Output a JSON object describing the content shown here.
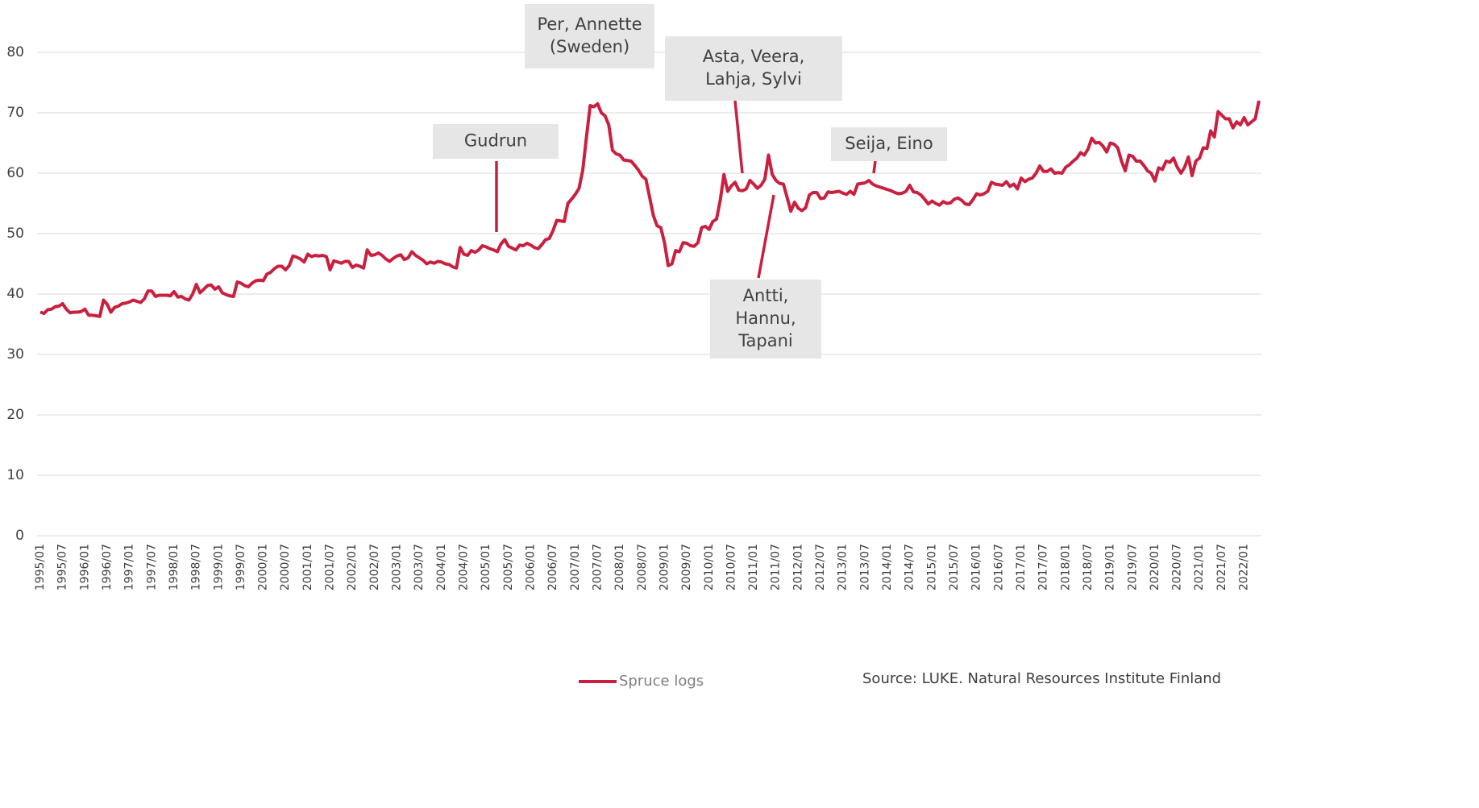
{
  "chart_data": {
    "type": "line",
    "categories": [
      "1995/01",
      null,
      null,
      null,
      null,
      null,
      "1995/07",
      null,
      null,
      null,
      null,
      null,
      "1996/01",
      null,
      null,
      null,
      null,
      null,
      "1996/07",
      null,
      null,
      null,
      null,
      null,
      "1997/01",
      null,
      null,
      null,
      null,
      null,
      "1997/07",
      null,
      null,
      null,
      null,
      null,
      "1998/01",
      null,
      null,
      null,
      null,
      null,
      "1998/07",
      null,
      null,
      null,
      null,
      null,
      "1999/01",
      null,
      null,
      null,
      null,
      null,
      "1999/07",
      null,
      null,
      null,
      null,
      null,
      "2000/01",
      null,
      null,
      null,
      null,
      null,
      "2000/07",
      null,
      null,
      null,
      null,
      null,
      "2001/01",
      null,
      null,
      null,
      null,
      null,
      "2001/07",
      null,
      null,
      null,
      null,
      null,
      "2002/01",
      null,
      null,
      null,
      null,
      null,
      "2002/07",
      null,
      null,
      null,
      null,
      null,
      "2003/01",
      null,
      null,
      null,
      null,
      null,
      "2003/07",
      null,
      null,
      null,
      null,
      null,
      "2004/01",
      null,
      null,
      null,
      null,
      null,
      "2004/07",
      null,
      null,
      null,
      null,
      null,
      "2005/01",
      null,
      null,
      null,
      null,
      null,
      "2005/07",
      null,
      null,
      null,
      null,
      null,
      "2006/01",
      null,
      null,
      null,
      null,
      null,
      "2006/07",
      null,
      null,
      null,
      null,
      null,
      "2007/01",
      null,
      null,
      null,
      null,
      null,
      "2007/07",
      null,
      null,
      null,
      null,
      null,
      "2008/01",
      null,
      null,
      null,
      null,
      null,
      "2008/07",
      null,
      null,
      null,
      null,
      null,
      "2009/01",
      null,
      null,
      null,
      null,
      null,
      "2009/07",
      null,
      null,
      null,
      null,
      null,
      "2010/01",
      null,
      null,
      null,
      null,
      null,
      "2010/07",
      null,
      null,
      null,
      null,
      null,
      "2011/01",
      null,
      null,
      null,
      null,
      null,
      "2011/07",
      null,
      null,
      null,
      null,
      null,
      "2012/01",
      null,
      null,
      null,
      null,
      null,
      "2012/07",
      null,
      null,
      null,
      null,
      null,
      "2013/01",
      null,
      null,
      null,
      null,
      null,
      "2013/07",
      null,
      null,
      null,
      null,
      null,
      "2014/01",
      null,
      null,
      null,
      null,
      null,
      "2014/07",
      null,
      null,
      null,
      null,
      null,
      "2015/01",
      null,
      null,
      null,
      null,
      null,
      "2015/07",
      null,
      null,
      null,
      null,
      null,
      "2016/01",
      null,
      null,
      null,
      null,
      null,
      "2016/07",
      null,
      null,
      null,
      null,
      null,
      "2017/01",
      null,
      null,
      null,
      null,
      null,
      "2017/07",
      null,
      null,
      null,
      null,
      null,
      "2018/01",
      null,
      null,
      null,
      null,
      null,
      "2018/07",
      null,
      null,
      null,
      null,
      null,
      "2019/01",
      null,
      null,
      null,
      null,
      null,
      "2019/07",
      null,
      null,
      null,
      null,
      null,
      "2020/01",
      null,
      null,
      null,
      null,
      null,
      "2020/07",
      null,
      null,
      null,
      null,
      null,
      "2021/01",
      null,
      null,
      null,
      null,
      null,
      "2021/07",
      null,
      null,
      null,
      null,
      null,
      "2022/01",
      null,
      null,
      null,
      null
    ],
    "series": [
      {
        "name": "Spruce logs",
        "color": "#c9203f",
        "values": [
          37,
          36.8,
          37.4,
          37.5,
          37.9,
          38,
          38.4,
          37.5,
          36.9,
          37,
          37,
          37.1,
          37.5,
          36.5,
          36.5,
          36.4,
          36.3,
          39,
          38.3,
          37,
          37.8,
          38,
          38.4,
          38.5,
          38.7,
          39,
          38.8,
          38.6,
          39.2,
          40.5,
          40.5,
          39.6,
          39.8,
          39.8,
          39.8,
          39.7,
          40.4,
          39.5,
          39.6,
          39.2,
          39,
          40,
          41.6,
          40.2,
          40.8,
          41.4,
          41.5,
          40.8,
          41.2,
          40.2,
          39.9,
          39.7,
          39.6,
          42,
          41.8,
          41.4,
          41.2,
          41.8,
          42.2,
          42.3,
          42.2,
          43.3,
          43.6,
          44.2,
          44.6,
          44.6,
          44,
          44.7,
          46.3,
          46.1,
          45.8,
          45.3,
          46.6,
          46.2,
          46.4,
          46.3,
          46.4,
          46.2,
          44,
          45.5,
          45.3,
          45.1,
          45.4,
          45.4,
          44.4,
          44.8,
          44.6,
          44.3,
          47.3,
          46.4,
          46.5,
          46.8,
          46.4,
          45.8,
          45.4,
          45.9,
          46.3,
          46.5,
          45.7,
          46,
          47,
          46.4,
          46,
          45.6,
          45,
          45.3,
          45.1,
          45.4,
          45.3,
          45,
          44.9,
          44.5,
          44.3,
          47.7,
          46.6,
          46.4,
          47.2,
          46.9,
          47.3,
          48,
          47.8,
          47.5,
          47.3,
          47,
          48.3,
          49,
          47.9,
          47.6,
          47.3,
          48.1,
          48,
          48.4,
          48.1,
          47.7,
          47.5,
          48.2,
          49,
          49.2,
          50.5,
          52.2,
          52.1,
          52,
          55,
          55.7,
          56.5,
          57.5,
          60.5,
          66,
          71.2,
          71,
          71.5,
          70,
          69.5,
          68,
          63.8,
          63.2,
          63,
          62.2,
          62.1,
          62,
          61.3,
          60.5,
          59.5,
          59,
          56,
          53,
          51.3,
          51,
          48.5,
          44.7,
          45,
          47.2,
          47,
          48.5,
          48.4,
          48,
          47.9,
          48.5,
          51,
          51.2,
          50.7,
          52,
          52.4,
          55.5,
          59.8,
          57,
          57.9,
          58.5,
          57.2,
          57.1,
          57.4,
          58.8,
          58.2,
          57.5,
          58,
          59,
          63,
          59.8,
          58.8,
          58.3,
          58.2,
          56,
          53.7,
          55.2,
          54.2,
          53.8,
          54.3,
          56.4,
          56.8,
          56.8,
          55.8,
          55.9,
          56.9,
          56.8,
          56.9,
          57,
          56.7,
          56.5,
          57,
          56.5,
          58.2,
          58.3,
          58.4,
          58.8,
          58.2,
          57.9,
          57.7,
          57.5,
          57.3,
          57.1,
          56.8,
          56.6,
          56.7,
          57,
          58,
          56.9,
          56.8,
          56.4,
          55.7,
          54.9,
          55.4,
          55,
          54.7,
          55.3,
          55,
          55.1,
          55.7,
          55.9,
          55.5,
          54.9,
          54.8,
          55.6,
          56.6,
          56.4,
          56.6,
          57,
          58.5,
          58.2,
          58.1,
          58,
          58.6,
          57.8,
          58.2,
          57.4,
          59.2,
          58.6,
          59,
          59.2,
          60,
          61.2,
          60.3,
          60.3,
          60.7,
          60,
          60.1,
          60,
          61,
          61.4,
          62,
          62.5,
          63.4,
          63,
          64,
          65.8,
          65,
          65.1,
          64.5,
          63.5,
          65,
          64.8,
          64.2,
          62,
          60.4,
          63,
          62.8,
          62,
          62,
          61.3,
          60.4,
          60,
          58.7,
          60.9,
          60.6,
          62,
          61.8,
          62.5,
          61,
          60,
          61,
          62.7,
          59.6,
          62,
          62.5,
          64.2,
          64.1,
          67,
          66,
          70.2,
          69.6,
          69,
          69,
          67.5,
          68.5,
          68,
          69.2,
          68,
          68.5,
          69,
          72
        ]
      }
    ],
    "ylim": [
      0,
      80
    ],
    "yticks": [
      0,
      10,
      20,
      30,
      40,
      50,
      60,
      70,
      80
    ],
    "grid": true,
    "legend": "bottom",
    "annotations": [
      {
        "lines": [
          "Per, Annette",
          "(Sweden)"
        ]
      },
      {
        "lines": [
          "Asta, Veera,",
          "Lahja, Sylvi"
        ]
      },
      {
        "lines": [
          "Gudrun"
        ]
      },
      {
        "lines": [
          "Seija, Eino"
        ]
      },
      {
        "lines": [
          "Antti,",
          "Hannu,",
          "Tapani"
        ]
      }
    ],
    "source": "Source: LUKE. Natural Resources Institute Finland"
  }
}
